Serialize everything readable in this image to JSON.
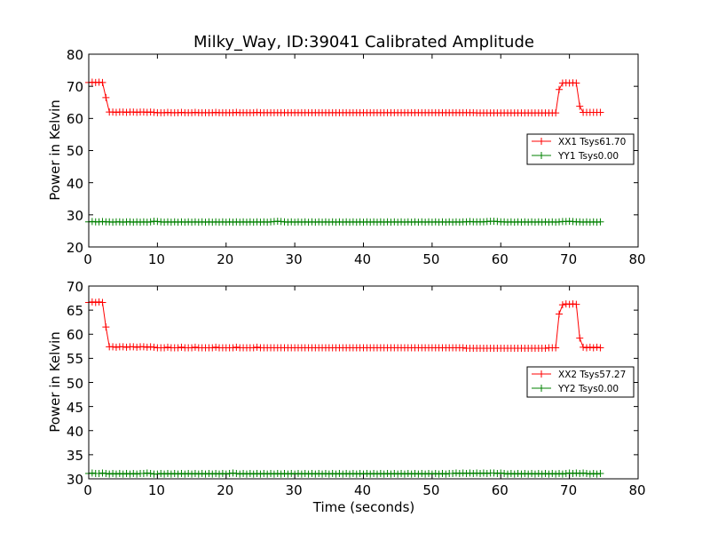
{
  "chart_data": [
    {
      "type": "line",
      "title": "Milky_Way, ID:39041 Calibrated Amplitude",
      "xlabel": "",
      "ylabel": "Power in Kelvin",
      "xlim": [
        0,
        80
      ],
      "ylim": [
        20,
        80
      ],
      "xticks": [
        "0",
        "10",
        "20",
        "30",
        "40",
        "50",
        "60",
        "70",
        "80"
      ],
      "yticks": [
        "20",
        "30",
        "40",
        "50",
        "60",
        "70",
        "80"
      ],
      "grid": false,
      "legend_position": "center-right",
      "x_start": 0.0,
      "x_step": 0.5,
      "series": [
        {
          "name": "XX1 Tsys61.70",
          "color": "#ff0000",
          "marker": "plus",
          "values": [
            71.2,
            71.3,
            71.2,
            71.3,
            71.2,
            66.5,
            62.0,
            62.0,
            61.9,
            62.0,
            62.0,
            61.9,
            62.0,
            62.0,
            61.9,
            62.0,
            62.0,
            61.9,
            62.0,
            61.9,
            61.8,
            61.8,
            61.8,
            61.9,
            61.8,
            61.8,
            61.8,
            61.9,
            61.8,
            61.8,
            61.8,
            61.9,
            61.8,
            61.8,
            61.8,
            61.8,
            61.8,
            61.9,
            61.8,
            61.8,
            61.8,
            61.8,
            61.8,
            61.9,
            61.8,
            61.8,
            61.8,
            61.8,
            61.8,
            61.9,
            61.8,
            61.8,
            61.8,
            61.8,
            61.8,
            61.8,
            61.8,
            61.8,
            61.8,
            61.8,
            61.8,
            61.8,
            61.8,
            61.8,
            61.8,
            61.8,
            61.8,
            61.8,
            61.8,
            61.8,
            61.8,
            61.8,
            61.8,
            61.8,
            61.8,
            61.8,
            61.8,
            61.8,
            61.8,
            61.8,
            61.8,
            61.8,
            61.8,
            61.8,
            61.8,
            61.8,
            61.8,
            61.8,
            61.8,
            61.8,
            61.8,
            61.8,
            61.8,
            61.8,
            61.8,
            61.8,
            61.8,
            61.8,
            61.8,
            61.8,
            61.8,
            61.8,
            61.8,
            61.8,
            61.8,
            61.8,
            61.8,
            61.8,
            61.8,
            61.8,
            61.8,
            61.8,
            61.8,
            61.7,
            61.7,
            61.7,
            61.7,
            61.7,
            61.7,
            61.7,
            61.7,
            61.7,
            61.7,
            61.7,
            61.7,
            61.7,
            61.7,
            61.7,
            61.7,
            61.7,
            61.7,
            61.7,
            61.7,
            61.7,
            61.7,
            61.7,
            61.7,
            69.0,
            71.0,
            71.1,
            71.0,
            71.1,
            71.0,
            63.8,
            61.9,
            61.9,
            61.9,
            61.9,
            61.9,
            61.9
          ]
        },
        {
          "name": "YY1 Tsys0.00",
          "color": "#008000",
          "marker": "plus",
          "values": [
            27.8,
            27.9,
            27.8,
            27.8,
            27.9,
            27.8,
            27.8,
            27.7,
            27.8,
            27.8,
            27.7,
            27.8,
            27.8,
            27.7,
            27.8,
            27.7,
            27.8,
            27.7,
            27.8,
            28.0,
            27.9,
            27.8,
            27.7,
            27.8,
            27.7,
            27.8,
            27.7,
            27.8,
            27.7,
            27.8,
            27.7,
            27.8,
            27.7,
            27.8,
            27.7,
            27.8,
            27.7,
            27.8,
            27.7,
            27.8,
            27.7,
            27.8,
            27.7,
            27.8,
            27.7,
            27.8,
            27.7,
            27.8,
            27.7,
            27.8,
            27.7,
            27.8,
            27.7,
            27.8,
            27.9,
            28.0,
            27.9,
            27.8,
            27.7,
            27.8,
            27.7,
            27.8,
            27.7,
            27.8,
            27.7,
            27.8,
            27.7,
            27.8,
            27.7,
            27.8,
            27.7,
            27.8,
            27.7,
            27.8,
            27.7,
            27.8,
            27.7,
            27.8,
            27.7,
            27.8,
            27.7,
            27.8,
            27.7,
            27.8,
            27.7,
            27.8,
            27.7,
            27.8,
            27.7,
            27.8,
            27.7,
            27.8,
            27.7,
            27.8,
            27.7,
            27.8,
            27.7,
            27.8,
            27.7,
            27.8,
            27.7,
            27.8,
            27.7,
            27.8,
            27.7,
            27.8,
            27.7,
            27.8,
            27.7,
            27.8,
            27.8,
            27.9,
            27.8,
            27.8,
            27.8,
            27.8,
            27.9,
            28.0,
            28.0,
            27.9,
            27.8,
            27.8,
            27.7,
            27.8,
            27.7,
            27.8,
            27.7,
            27.8,
            27.7,
            27.8,
            27.7,
            27.8,
            27.7,
            27.8,
            27.7,
            27.8,
            27.7,
            27.8,
            27.9,
            27.9,
            28.0,
            27.9,
            27.8,
            27.8,
            27.7,
            27.8,
            27.7,
            27.8,
            27.7,
            27.8
          ]
        }
      ]
    },
    {
      "type": "line",
      "title": "",
      "xlabel": "Time (seconds)",
      "ylabel": "Power in Kelvin",
      "xlim": [
        0,
        80
      ],
      "ylim": [
        30,
        70
      ],
      "xticks": [
        "0",
        "10",
        "20",
        "30",
        "40",
        "50",
        "60",
        "70",
        "80"
      ],
      "yticks": [
        "30",
        "35",
        "40",
        "45",
        "50",
        "55",
        "60",
        "65",
        "70"
      ],
      "grid": false,
      "legend_position": "center-right",
      "x_start": 0.0,
      "x_step": 0.5,
      "series": [
        {
          "name": "XX2 Tsys57.27",
          "color": "#ff0000",
          "marker": "plus",
          "values": [
            66.6,
            66.7,
            66.6,
            66.7,
            66.6,
            61.5,
            57.4,
            57.4,
            57.3,
            57.4,
            57.4,
            57.3,
            57.4,
            57.4,
            57.3,
            57.4,
            57.4,
            57.3,
            57.4,
            57.3,
            57.2,
            57.2,
            57.2,
            57.3,
            57.2,
            57.2,
            57.2,
            57.3,
            57.2,
            57.2,
            57.2,
            57.3,
            57.2,
            57.2,
            57.2,
            57.2,
            57.2,
            57.3,
            57.2,
            57.2,
            57.2,
            57.2,
            57.2,
            57.3,
            57.2,
            57.2,
            57.2,
            57.2,
            57.2,
            57.3,
            57.2,
            57.2,
            57.2,
            57.2,
            57.2,
            57.2,
            57.2,
            57.2,
            57.2,
            57.2,
            57.2,
            57.2,
            57.2,
            57.2,
            57.2,
            57.2,
            57.2,
            57.2,
            57.2,
            57.2,
            57.2,
            57.2,
            57.2,
            57.2,
            57.2,
            57.2,
            57.2,
            57.2,
            57.2,
            57.2,
            57.2,
            57.2,
            57.2,
            57.2,
            57.2,
            57.2,
            57.2,
            57.2,
            57.2,
            57.2,
            57.2,
            57.2,
            57.2,
            57.2,
            57.2,
            57.2,
            57.2,
            57.2,
            57.2,
            57.2,
            57.2,
            57.2,
            57.2,
            57.2,
            57.2,
            57.2,
            57.2,
            57.2,
            57.2,
            57.2,
            57.1,
            57.1,
            57.1,
            57.1,
            57.1,
            57.1,
            57.1,
            57.1,
            57.1,
            57.1,
            57.1,
            57.1,
            57.1,
            57.1,
            57.1,
            57.1,
            57.1,
            57.1,
            57.1,
            57.1,
            57.1,
            57.1,
            57.1,
            57.1,
            57.2,
            57.2,
            57.2,
            64.2,
            66.1,
            66.3,
            66.2,
            66.3,
            66.2,
            59.2,
            57.3,
            57.2,
            57.3,
            57.2,
            57.3,
            57.2
          ]
        },
        {
          "name": "YY2 Tsys0.00",
          "color": "#008000",
          "marker": "plus",
          "values": [
            31.1,
            31.2,
            31.1,
            31.1,
            31.2,
            31.1,
            31.0,
            31.1,
            31.0,
            31.1,
            31.0,
            31.1,
            31.0,
            31.1,
            31.0,
            31.1,
            31.1,
            31.2,
            31.1,
            31.0,
            31.0,
            31.1,
            31.0,
            31.1,
            31.0,
            31.1,
            31.0,
            31.1,
            31.0,
            31.1,
            31.0,
            31.1,
            31.0,
            31.1,
            31.0,
            31.1,
            31.0,
            31.1,
            31.0,
            31.1,
            31.0,
            31.1,
            31.2,
            31.1,
            31.0,
            31.1,
            31.0,
            31.1,
            31.0,
            31.1,
            31.0,
            31.1,
            31.0,
            31.1,
            31.0,
            31.1,
            31.0,
            31.1,
            31.0,
            31.1,
            31.0,
            31.1,
            31.0,
            31.1,
            31.0,
            31.1,
            31.0,
            31.1,
            31.0,
            31.1,
            31.0,
            31.1,
            31.0,
            31.1,
            31.0,
            31.1,
            31.0,
            31.1,
            31.0,
            31.1,
            31.0,
            31.1,
            31.0,
            31.1,
            31.0,
            31.1,
            31.0,
            31.1,
            31.0,
            31.1,
            31.0,
            31.1,
            31.0,
            31.1,
            31.0,
            31.1,
            31.0,
            31.1,
            31.0,
            31.1,
            31.0,
            31.1,
            31.0,
            31.1,
            31.0,
            31.1,
            31.1,
            31.2,
            31.1,
            31.2,
            31.1,
            31.2,
            31.1,
            31.2,
            31.1,
            31.2,
            31.1,
            31.2,
            31.2,
            31.1,
            31.2,
            31.1,
            31.0,
            31.1,
            31.0,
            31.1,
            31.0,
            31.1,
            31.0,
            31.1,
            31.0,
            31.1,
            31.0,
            31.1,
            31.0,
            31.1,
            31.0,
            31.1,
            31.0,
            31.1,
            31.2,
            31.1,
            31.2,
            31.1,
            31.2,
            31.1,
            31.0,
            31.1,
            31.0,
            31.1
          ]
        }
      ]
    }
  ]
}
